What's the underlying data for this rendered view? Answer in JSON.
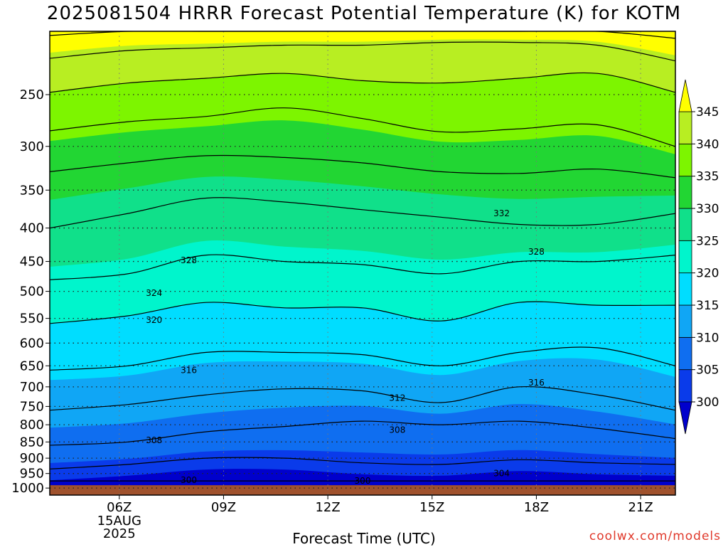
{
  "title": "2025081504 HRRR Forecast Potential Temperature (K) for KOTM",
  "credit": "coolwx.com/models",
  "chart_data": {
    "type": "heatmap",
    "title": "2025081504 HRRR Forecast Potential Temperature (K) for KOTM",
    "xlabel": "Forecast Time (UTC)",
    "ylabel": "",
    "x_ticks": [
      {
        "hour": 6,
        "label": "06Z",
        "sublabels": [
          "15AUG",
          "2025"
        ]
      },
      {
        "hour": 9,
        "label": "09Z"
      },
      {
        "hour": 12,
        "label": "12Z"
      },
      {
        "hour": 15,
        "label": "15Z"
      },
      {
        "hour": 18,
        "label": "18Z"
      },
      {
        "hour": 21,
        "label": "21Z"
      }
    ],
    "xlim": [
      4.0,
      22.0
    ],
    "y_ticks": [
      250,
      300,
      350,
      400,
      450,
      500,
      550,
      600,
      650,
      700,
      750,
      800,
      850,
      900,
      950,
      1000
    ],
    "ylim_pressure_hpa": [
      200,
      1025
    ],
    "y_scale": "log-pressure (inverted)",
    "surface_pressure_hpa": 990,
    "grid": "dotted",
    "colorbar": {
      "levels": [
        300,
        305,
        310,
        315,
        320,
        325,
        330,
        335,
        340,
        345
      ],
      "colors": [
        "#0000cc",
        "#0a3bea",
        "#0f6ef0",
        "#10a6f5",
        "#00ddff",
        "#00f5cc",
        "#10e08a",
        "#22d633",
        "#7df500",
        "#b8ee22",
        "#ffff00"
      ],
      "under_color": "#0000cc",
      "over_color": "#ffff00"
    },
    "surface_color": "#a0522d",
    "contour_interval_k": 4,
    "contour_labels": [
      {
        "value": 332,
        "hour": 17.0,
        "pressure": 380
      },
      {
        "value": 328,
        "hour": 8.0,
        "pressure": 448
      },
      {
        "value": 328,
        "hour": 18.0,
        "pressure": 435
      },
      {
        "value": 324,
        "hour": 7.0,
        "pressure": 503
      },
      {
        "value": 320,
        "hour": 7.0,
        "pressure": 553
      },
      {
        "value": 316,
        "hour": 8.0,
        "pressure": 660
      },
      {
        "value": 316,
        "hour": 18.0,
        "pressure": 690
      },
      {
        "value": 312,
        "hour": 14.0,
        "pressure": 728
      },
      {
        "value": 308,
        "hour": 7.0,
        "pressure": 845
      },
      {
        "value": 308,
        "hour": 14.0,
        "pressure": 815
      },
      {
        "value": 304,
        "hour": 17.0,
        "pressure": 950
      },
      {
        "value": 300,
        "hour": 8.0,
        "pressure": 972
      },
      {
        "value": 300,
        "hour": 13.0,
        "pressure": 975
      }
    ],
    "isentropes": [
      {
        "value": 348,
        "pressure": [
          203,
          200,
          200,
          200,
          200,
          200,
          200,
          200,
          205
        ]
      },
      {
        "value": 344,
        "pressure": [
          220,
          214,
          212,
          210,
          210,
          208,
          208,
          210,
          222
        ]
      },
      {
        "value": 340,
        "pressure": [
          248,
          240,
          236,
          232,
          238,
          240,
          236,
          232,
          248
        ]
      },
      {
        "value": 336,
        "pressure": [
          284,
          275,
          270,
          262,
          272,
          285,
          282,
          278,
          300
        ]
      },
      {
        "value": 332,
        "pressure": [
          328,
          318,
          310,
          312,
          318,
          328,
          330,
          325,
          335
        ]
      },
      {
        "value": 328,
        "pressure": [
          400,
          380,
          360,
          365,
          375,
          385,
          395,
          395,
          380
        ]
      },
      {
        "value": 324,
        "pressure": [
          480,
          470,
          440,
          450,
          455,
          470,
          450,
          450,
          440
        ]
      },
      {
        "value": 320,
        "pressure": [
          560,
          545,
          520,
          530,
          530,
          555,
          520,
          525,
          525
        ]
      },
      {
        "value": 316,
        "pressure": [
          660,
          650,
          620,
          620,
          625,
          650,
          620,
          610,
          650
        ]
      },
      {
        "value": 312,
        "pressure": [
          760,
          745,
          720,
          705,
          710,
          740,
          700,
          720,
          760
        ]
      },
      {
        "value": 308,
        "pressure": [
          860,
          850,
          820,
          805,
          790,
          800,
          790,
          810,
          840
        ]
      },
      {
        "value": 304,
        "pressure": [
          935,
          920,
          900,
          900,
          915,
          920,
          905,
          915,
          920
        ]
      }
    ]
  }
}
